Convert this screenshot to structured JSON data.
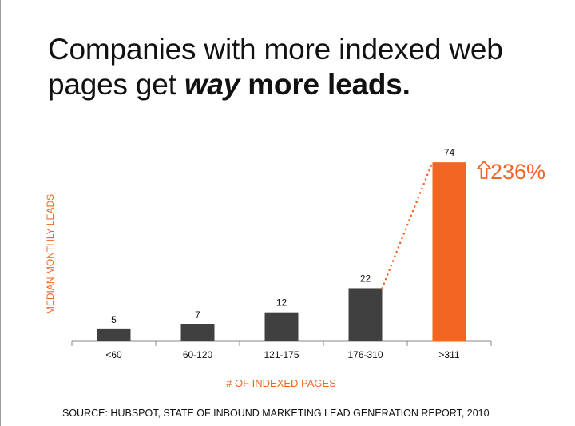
{
  "slide": {
    "title_part1": "Companies with more indexed web pages get ",
    "title_emph": "way",
    "title_part2": " more leads.",
    "source": "SOURCE: HUBSPOT, STATE OF INBOUND MARKETING LEAD GENERATION REPORT, 2010"
  },
  "chart_data": {
    "type": "bar",
    "title": "",
    "xlabel": "# OF INDEXED PAGES",
    "ylabel": "MEDIAN MONTHLY LEADS",
    "categories": [
      "<60",
      "60-120",
      "121-175",
      "176-310",
      ">311"
    ],
    "values": [
      5,
      7,
      12,
      22,
      74
    ],
    "data_labels": [
      "5",
      "7",
      "12",
      "22",
      "74"
    ],
    "ylim": [
      0,
      80
    ],
    "grid": false,
    "highlight_index": 4,
    "annotation": {
      "text": "236%",
      "icon": "up-arrow-outline-icon",
      "from_index": 3,
      "to_index": 4,
      "connector": "dotted"
    },
    "colors": {
      "bar": "#404040",
      "highlight": "#f26522",
      "label_text": "#f26522",
      "axis": "#888888"
    }
  }
}
